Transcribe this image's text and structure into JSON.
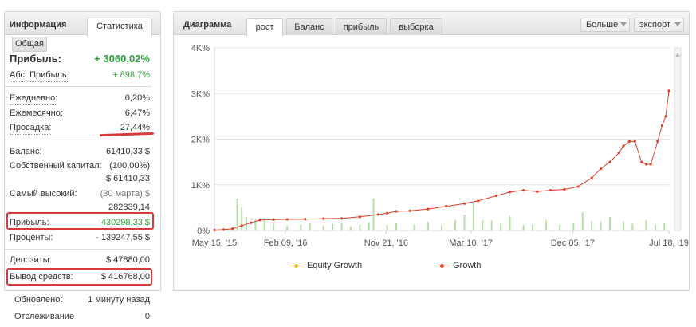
{
  "info_panel": {
    "tabs": [
      {
        "label": "Информация"
      },
      {
        "label": "Статистика"
      }
    ],
    "subtab": "Общая",
    "profit_main": {
      "label": "Прибыль:",
      "value": "+ 3060,02%"
    },
    "abs_profit": {
      "label": "Абс. Прибыль:",
      "value": "+ 898,7%"
    },
    "daily": {
      "label": "Ежедневно:",
      "value": "0,20%"
    },
    "monthly": {
      "label": "Ежемесячно:",
      "value": "6,47%"
    },
    "drawdown": {
      "label": "Просадка:",
      "value": "27,44%"
    },
    "balance": {
      "label": "Баланс:",
      "value": "61410,33 $"
    },
    "equity": {
      "label": "Собственный капитал:",
      "value": "(100,00%)",
      "value2": "$ 61410,33"
    },
    "highest": {
      "label": "Самый высокий:",
      "value": "(30 марта) $",
      "value2": "282839,14"
    },
    "profit": {
      "label": "Прибыль:",
      "value": "430298,33 $"
    },
    "interest": {
      "label": "Проценты:",
      "value": "- 139247,55 $"
    },
    "deposits": {
      "label": "Депозиты:",
      "value": "$ 47880,00"
    },
    "withdrawals": {
      "label": "Вывод средств:",
      "value": "$ 416768,00"
    }
  },
  "footer": {
    "updated": {
      "label": "Обновлено:",
      "value": "1 минуту назад"
    },
    "tracking": {
      "label": "Отслеживание",
      "value": "0"
    }
  },
  "chart_panel": {
    "title": "Диаграмма",
    "tabs": [
      {
        "label": "рост"
      },
      {
        "label": "Баланс"
      },
      {
        "label": "прибыль"
      },
      {
        "label": "выборка"
      }
    ],
    "active_tab": "рост",
    "more_button": "Больше",
    "export_button": "экспорт",
    "colors": {
      "growth": "#d9412b",
      "equity": "#f0c419",
      "volume": "#b5e0a5"
    }
  },
  "chart_data": {
    "type": "line",
    "y_ticks": [
      "0%",
      "1K%",
      "2K%",
      "3K%",
      "4K%"
    ],
    "ylim": [
      0,
      4000
    ],
    "x_ticks": [
      "May 15, '15",
      "Feb 09, '16",
      "Nov 21, '16",
      "Mar 10, '17",
      "Dec 05, '17",
      "Jul 18, '19"
    ],
    "x_tick_positions": [
      0,
      0.1563,
      0.3778,
      0.5644,
      0.7884,
      1
    ],
    "legend": [
      {
        "name": "Equity Growth"
      },
      {
        "name": "Growth"
      }
    ],
    "series": [
      {
        "name": "Growth",
        "points": [
          [
            0,
            10
          ],
          [
            0.02,
            20
          ],
          [
            0.04,
            40
          ],
          [
            0.06,
            110
          ],
          [
            0.08,
            170
          ],
          [
            0.1,
            230
          ],
          [
            0.13,
            240
          ],
          [
            0.16,
            245
          ],
          [
            0.2,
            250
          ],
          [
            0.24,
            260
          ],
          [
            0.28,
            265
          ],
          [
            0.32,
            300
          ],
          [
            0.36,
            350
          ],
          [
            0.38,
            380
          ],
          [
            0.4,
            420
          ],
          [
            0.43,
            430
          ],
          [
            0.47,
            470
          ],
          [
            0.51,
            530
          ],
          [
            0.55,
            590
          ],
          [
            0.58,
            650
          ],
          [
            0.62,
            760
          ],
          [
            0.65,
            840
          ],
          [
            0.68,
            880
          ],
          [
            0.71,
            850
          ],
          [
            0.74,
            880
          ],
          [
            0.77,
            900
          ],
          [
            0.8,
            960
          ],
          [
            0.83,
            1150
          ],
          [
            0.85,
            1350
          ],
          [
            0.87,
            1500
          ],
          [
            0.89,
            1700
          ],
          [
            0.9,
            1850
          ],
          [
            0.913,
            1950
          ],
          [
            0.925,
            1950
          ],
          [
            0.94,
            1500
          ],
          [
            0.95,
            1450
          ],
          [
            0.96,
            1450
          ],
          [
            0.975,
            1950
          ],
          [
            0.985,
            2300
          ],
          [
            0.993,
            2500
          ],
          [
            1,
            3060
          ]
        ]
      }
    ],
    "volume": [
      [
        0.05,
        700
      ],
      [
        0.06,
        500
      ],
      [
        0.07,
        300
      ],
      [
        0.09,
        250
      ],
      [
        0.11,
        280
      ],
      [
        0.13,
        150
      ],
      [
        0.16,
        100
      ],
      [
        0.19,
        130
      ],
      [
        0.21,
        160
      ],
      [
        0.24,
        110
      ],
      [
        0.26,
        140
      ],
      [
        0.28,
        170
      ],
      [
        0.3,
        90
      ],
      [
        0.32,
        130
      ],
      [
        0.34,
        180
      ],
      [
        0.35,
        700
      ],
      [
        0.38,
        120
      ],
      [
        0.4,
        160
      ],
      [
        0.44,
        130
      ],
      [
        0.47,
        190
      ],
      [
        0.5,
        110
      ],
      [
        0.53,
        230
      ],
      [
        0.55,
        350
      ],
      [
        0.57,
        600
      ],
      [
        0.59,
        230
      ],
      [
        0.61,
        220
      ],
      [
        0.63,
        150
      ],
      [
        0.65,
        320
      ],
      [
        0.68,
        120
      ],
      [
        0.7,
        140
      ],
      [
        0.73,
        220
      ],
      [
        0.76,
        130
      ],
      [
        0.79,
        160
      ],
      [
        0.81,
        400
      ],
      [
        0.83,
        200
      ],
      [
        0.85,
        200
      ],
      [
        0.87,
        300
      ],
      [
        0.9,
        200
      ],
      [
        0.92,
        150
      ],
      [
        0.95,
        230
      ],
      [
        0.97,
        130
      ],
      [
        0.99,
        160
      ]
    ]
  }
}
